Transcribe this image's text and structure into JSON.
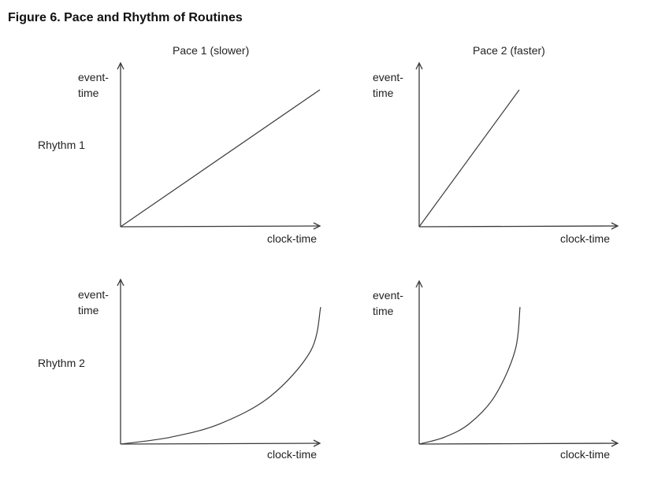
{
  "figure": {
    "title": "Figure 6.  Pace and Rhythm of Routines",
    "columns": [
      "Pace 1 (slower)",
      "Pace 2 (faster)"
    ],
    "rows": [
      "Rhythm 1",
      "Rhythm 2"
    ],
    "y_label_line1": "event-",
    "y_label_line2": "time",
    "x_label": "clock-time"
  },
  "chart_data": [
    {
      "type": "line",
      "title": "",
      "xlabel": "clock-time",
      "ylabel": "event-time",
      "x": [
        0,
        1
      ],
      "y": [
        0,
        0.58
      ]
    },
    {
      "type": "line",
      "title": "",
      "xlabel": "clock-time",
      "ylabel": "event-time",
      "x": [
        0,
        1
      ],
      "y": [
        0,
        1.38
      ]
    },
    {
      "type": "line",
      "title": "",
      "xlabel": "clock-time",
      "ylabel": "event-time",
      "x": [
        0,
        0.25,
        0.5,
        0.75,
        0.95,
        1
      ],
      "y": [
        0,
        0.05,
        0.15,
        0.35,
        0.68,
        1
      ]
    },
    {
      "type": "line",
      "title": "",
      "xlabel": "clock-time",
      "ylabel": "event-time",
      "x": [
        0,
        0.25,
        0.5,
        0.75,
        0.95,
        1
      ],
      "y": [
        0,
        0.05,
        0.15,
        0.35,
        0.68,
        1
      ]
    }
  ]
}
